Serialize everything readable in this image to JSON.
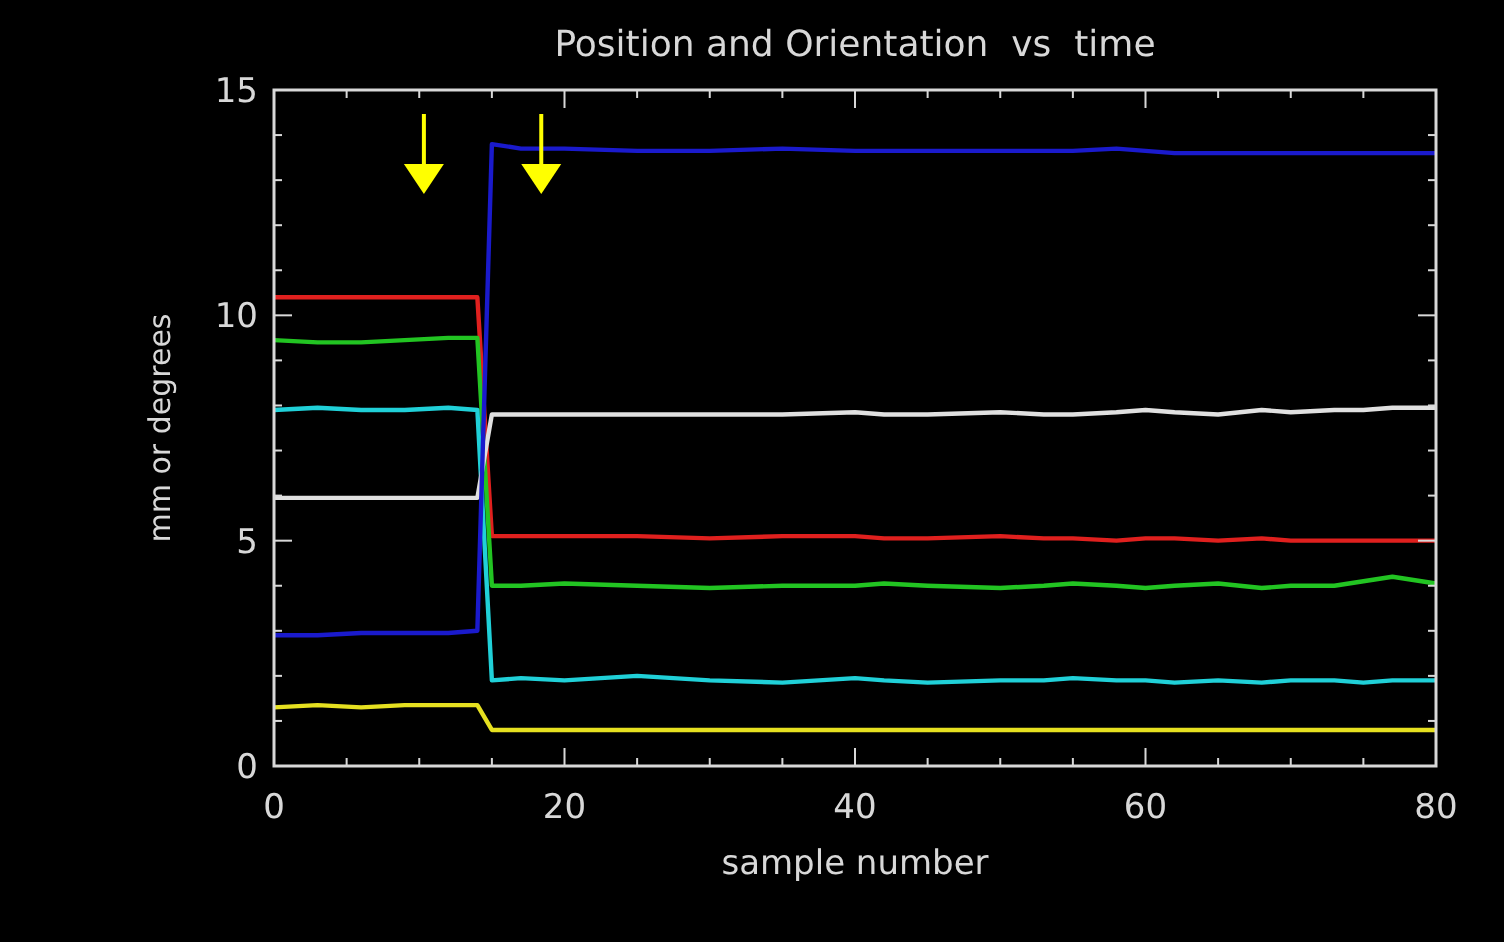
{
  "chart_data": {
    "type": "line",
    "title": "Position and Orientation  vs  time",
    "xlabel": "sample number",
    "ylabel": "mm or degrees",
    "x": [
      0,
      3,
      6,
      9,
      12,
      14,
      15,
      17,
      20,
      25,
      30,
      35,
      40,
      42,
      45,
      50,
      53,
      55,
      58,
      60,
      62,
      65,
      68,
      70,
      73,
      75,
      77,
      80
    ],
    "series": [
      {
        "color": "#e0201e",
        "values": [
          10.4,
          10.4,
          10.4,
          10.4,
          10.4,
          10.4,
          5.1,
          5.1,
          5.1,
          5.1,
          5.05,
          5.1,
          5.1,
          5.05,
          5.05,
          5.1,
          5.05,
          5.05,
          5.0,
          5.05,
          5.05,
          5.0,
          5.05,
          5.0,
          5.0,
          5.0,
          5.0,
          5.0
        ]
      },
      {
        "color": "#22c422",
        "values": [
          9.45,
          9.4,
          9.4,
          9.45,
          9.5,
          9.5,
          4.0,
          4.0,
          4.05,
          4.0,
          3.95,
          4.0,
          4.0,
          4.05,
          4.0,
          3.95,
          4.0,
          4.05,
          4.0,
          3.95,
          4.0,
          4.05,
          3.95,
          4.0,
          4.0,
          4.1,
          4.2,
          4.05
        ]
      },
      {
        "color": "#20d0d8",
        "values": [
          7.9,
          7.95,
          7.9,
          7.9,
          7.95,
          7.9,
          1.9,
          1.95,
          1.9,
          2.0,
          1.9,
          1.85,
          1.95,
          1.9,
          1.85,
          1.9,
          1.9,
          1.95,
          1.9,
          1.9,
          1.85,
          1.9,
          1.85,
          1.9,
          1.9,
          1.85,
          1.9,
          1.9
        ]
      },
      {
        "color": "#e0e0e0",
        "values": [
          5.95,
          5.95,
          5.95,
          5.95,
          5.95,
          5.95,
          7.8,
          7.8,
          7.8,
          7.8,
          7.8,
          7.8,
          7.85,
          7.8,
          7.8,
          7.85,
          7.8,
          7.8,
          7.85,
          7.9,
          7.85,
          7.8,
          7.9,
          7.85,
          7.9,
          7.9,
          7.95,
          7.95
        ]
      },
      {
        "color": "#1a1acc",
        "values": [
          2.9,
          2.9,
          2.95,
          2.95,
          2.95,
          3.0,
          13.8,
          13.7,
          13.7,
          13.65,
          13.65,
          13.7,
          13.65,
          13.65,
          13.65,
          13.65,
          13.65,
          13.65,
          13.7,
          13.65,
          13.6,
          13.6,
          13.6,
          13.6,
          13.6,
          13.6,
          13.6,
          13.6
        ]
      },
      {
        "color": "#e6e020",
        "values": [
          1.3,
          1.35,
          1.3,
          1.35,
          1.35,
          1.35,
          0.8,
          0.8,
          0.8,
          0.8,
          0.8,
          0.8,
          0.8,
          0.8,
          0.8,
          0.8,
          0.8,
          0.8,
          0.8,
          0.8,
          0.8,
          0.8,
          0.8,
          0.8,
          0.8,
          0.8,
          0.8,
          0.8
        ]
      }
    ],
    "xlim": [
      0,
      80
    ],
    "ylim": [
      0,
      15
    ],
    "xticks": [
      0,
      {
        "value": 5,
        "label": null
      },
      {
        "value": 10,
        "label": null
      },
      {
        "value": 15,
        "label": null
      },
      20,
      {
        "value": 25,
        "label": null
      },
      {
        "value": 30,
        "label": null
      },
      {
        "value": 35,
        "label": null
      },
      40,
      {
        "value": 45,
        "label": null
      },
      {
        "value": 50,
        "label": null
      },
      {
        "value": 55,
        "label": null
      },
      60,
      {
        "value": 65,
        "label": null
      },
      {
        "value": 70,
        "label": null
      },
      {
        "value": 75,
        "label": null
      },
      80
    ],
    "yticks": [
      0,
      {
        "value": 1,
        "label": null
      },
      {
        "value": 2,
        "label": null
      },
      {
        "value": 3,
        "label": null
      },
      {
        "value": 4,
        "label": null
      },
      5,
      {
        "value": 6,
        "label": null
      },
      {
        "value": 7,
        "label": null
      },
      {
        "value": 8,
        "label": null
      },
      {
        "value": 9,
        "label": null
      },
      10,
      {
        "value": 11,
        "label": null
      },
      {
        "value": 12,
        "label": null
      },
      {
        "value": 13,
        "label": null
      },
      {
        "value": 14,
        "label": null
      },
      15
    ],
    "grid": false,
    "marker": "none",
    "line_style": "solid"
  }
}
